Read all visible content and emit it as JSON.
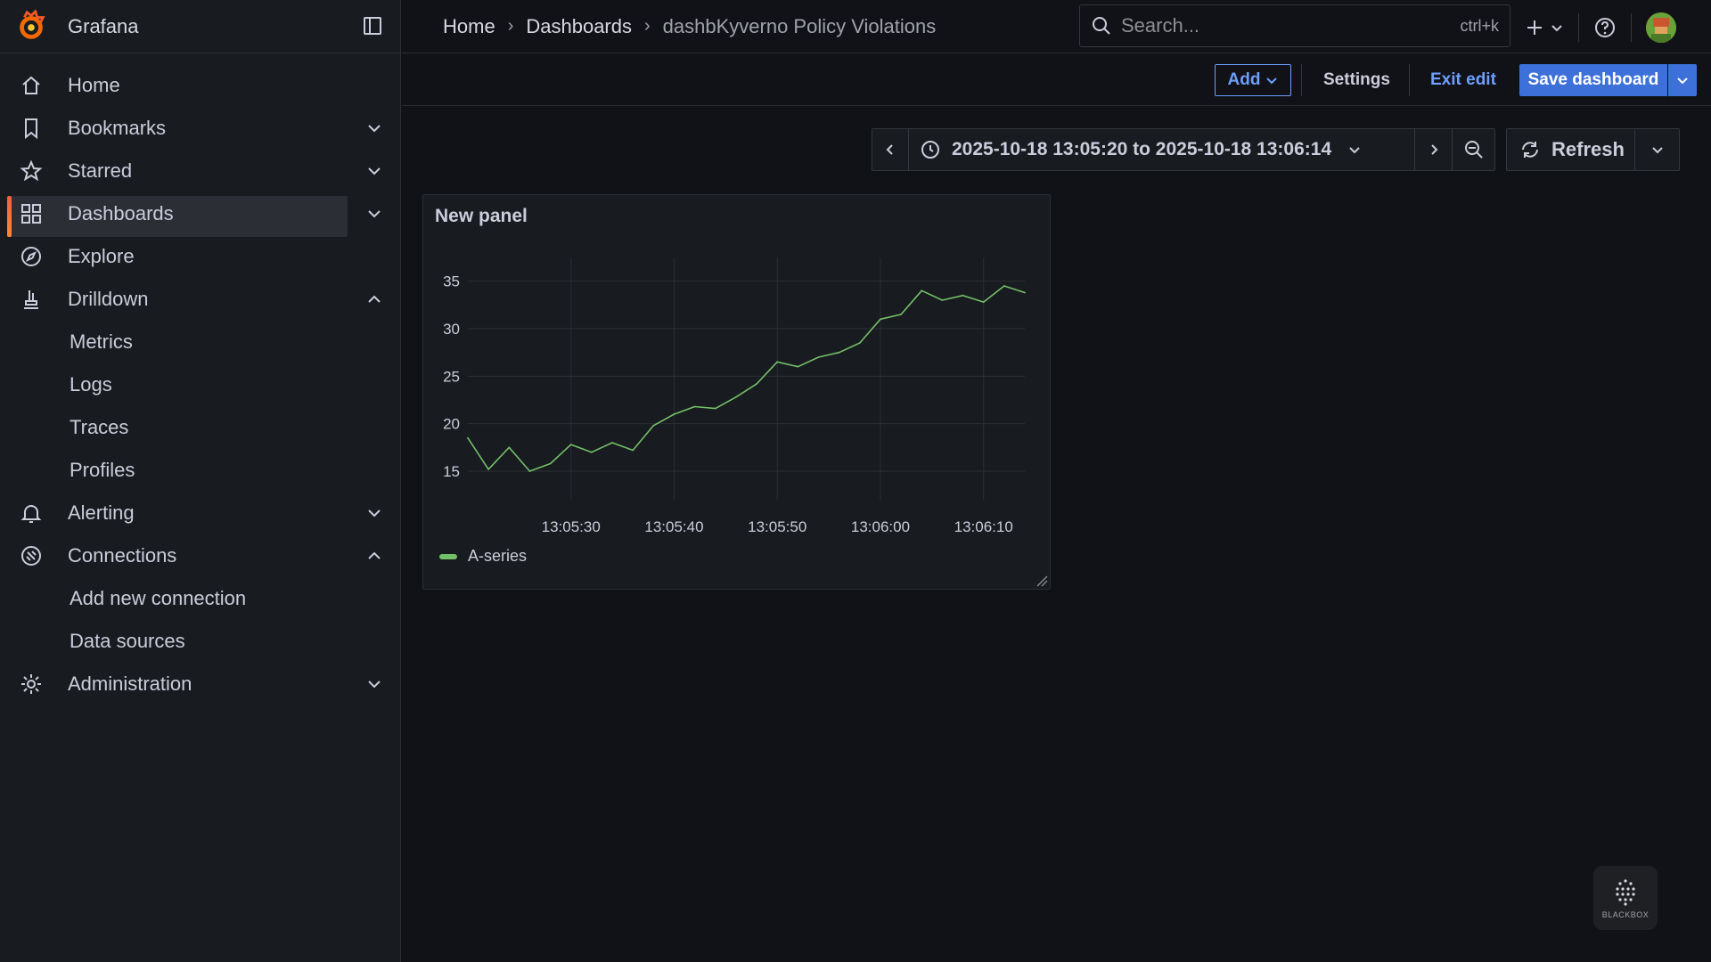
{
  "app": {
    "name": "Grafana"
  },
  "sidebar": {
    "items": [
      {
        "label": "Home",
        "icon": "home-icon"
      },
      {
        "label": "Bookmarks",
        "icon": "bookmark-icon",
        "chevron": "down"
      },
      {
        "label": "Starred",
        "icon": "star-icon",
        "chevron": "down"
      },
      {
        "label": "Dashboards",
        "icon": "apps-icon",
        "chevron": "down",
        "active": true
      },
      {
        "label": "Explore",
        "icon": "compass-icon"
      },
      {
        "label": "Drilldown",
        "icon": "drilldown-icon",
        "chevron": "up"
      },
      {
        "label": "Metrics",
        "sub": true
      },
      {
        "label": "Logs",
        "sub": true
      },
      {
        "label": "Traces",
        "sub": true
      },
      {
        "label": "Profiles",
        "sub": true
      },
      {
        "label": "Alerting",
        "icon": "bell-icon",
        "chevron": "down"
      },
      {
        "label": "Connections",
        "icon": "plug-icon",
        "chevron": "up"
      },
      {
        "label": "Add new connection",
        "sub": true
      },
      {
        "label": "Data sources",
        "sub": true
      },
      {
        "label": "Administration",
        "icon": "cog-icon",
        "chevron": "down"
      }
    ]
  },
  "breadcrumb": [
    "Home",
    "Dashboards",
    "dashbKyverno Policy Violations"
  ],
  "search": {
    "placeholder": "Search...",
    "shortcut": "ctrl+k"
  },
  "toolbar": {
    "add_label": "Add",
    "settings_label": "Settings",
    "exit_label": "Exit edit",
    "save_label": "Save dashboard"
  },
  "time": {
    "range": "2025-10-18 13:05:20 to 2025-10-18 13:06:14",
    "refresh_label": "Refresh"
  },
  "panel": {
    "title": "New panel",
    "legend": "A-series"
  },
  "colors": {
    "series": "#73bf69",
    "accent": "#3d71d9",
    "link": "#6e9fff"
  },
  "watermark": {
    "label": "BLACKBOX"
  },
  "chart_data": {
    "type": "line",
    "x_ticks": [
      "13:05:30",
      "13:05:40",
      "13:05:50",
      "13:06:00",
      "13:06:10"
    ],
    "y_ticks": [
      15,
      20,
      25,
      30,
      35
    ],
    "xlim": [
      "13:05:20",
      "13:06:14"
    ],
    "series": [
      {
        "name": "A-series",
        "x": [
          "13:05:20",
          "13:05:22",
          "13:05:24",
          "13:05:26",
          "13:05:28",
          "13:05:30",
          "13:05:32",
          "13:05:34",
          "13:05:36",
          "13:05:38",
          "13:05:40",
          "13:05:42",
          "13:05:44",
          "13:05:46",
          "13:05:48",
          "13:05:50",
          "13:05:52",
          "13:05:54",
          "13:05:56",
          "13:05:58",
          "13:06:00",
          "13:06:02",
          "13:06:04",
          "13:06:06",
          "13:06:08",
          "13:06:10",
          "13:06:12",
          "13:06:14"
        ],
        "values": [
          18.5,
          15.2,
          17.5,
          15.0,
          15.8,
          17.8,
          17.0,
          18.0,
          17.2,
          19.8,
          21.0,
          21.8,
          21.6,
          22.8,
          24.2,
          26.5,
          26.0,
          27.0,
          27.5,
          28.5,
          31.0,
          31.5,
          34.0,
          33.0,
          33.5,
          32.8,
          34.5,
          33.8
        ]
      }
    ]
  }
}
